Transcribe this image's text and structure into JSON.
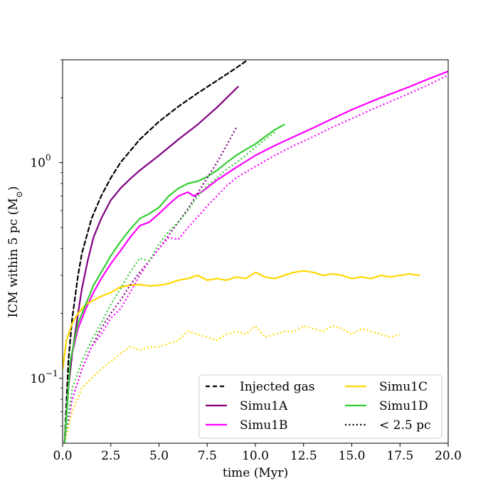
{
  "chart_data": {
    "type": "line",
    "title": "",
    "xlabel": "time (Myr)",
    "ylabel_main": "ICM within 5 pc (M",
    "ylabel_sub": "⊙",
    "ylabel_close": ")",
    "xlim": [
      0,
      20
    ],
    "ylim": [
      0.05,
      3.0
    ],
    "yscale": "log",
    "x_ticks": [
      0,
      2.5,
      5,
      7.5,
      10,
      12.5,
      15,
      17.5,
      20
    ],
    "x_tick_labels": [
      "0.0",
      "2.5",
      "5.0",
      "7.5",
      "10.0",
      "12.5",
      "15.0",
      "17.5",
      "20.0"
    ],
    "y_major_ticks": [
      0.1,
      1.0
    ],
    "y_tick_labels": [
      {
        "base": "10",
        "exp": "−1"
      },
      {
        "base": "10",
        "exp": "0"
      }
    ],
    "y_minor_ticks": [
      0.06,
      0.07,
      0.08,
      0.09,
      0.2,
      0.3,
      0.4,
      0.5,
      0.6,
      0.7,
      0.8,
      0.9,
      2.0,
      3.0
    ],
    "legend": {
      "placement": "lower-right",
      "entries": [
        {
          "label": "Injected gas",
          "color": "#000000",
          "dash": "dashed"
        },
        {
          "label": "Simu1C",
          "color": "#ffd700",
          "dash": "solid"
        },
        {
          "label": "Simu1A",
          "color": "#800080",
          "dash": "solid"
        },
        {
          "label": "Simu1D",
          "color": "#32cd32",
          "dash": "solid"
        },
        {
          "label": "Simu1B",
          "color": "#ff00ff",
          "dash": "solid"
        },
        {
          "label": "< 2.5 pc",
          "color": "#000000",
          "dash": "dotted"
        }
      ]
    },
    "series": [
      {
        "name": "Injected gas",
        "color": "#000000",
        "dash": "dashed",
        "x": [
          0.1,
          0.3,
          0.5,
          0.8,
          1.0,
          1.5,
          2.0,
          2.5,
          3.0,
          4.0,
          5.0,
          6.0,
          7.0,
          8.0,
          9.0,
          9.5
        ],
        "y": [
          0.05,
          0.12,
          0.19,
          0.3,
          0.38,
          0.55,
          0.7,
          0.85,
          1.0,
          1.28,
          1.55,
          1.82,
          2.1,
          2.4,
          2.75,
          2.95
        ]
      },
      {
        "name": "Simu1A",
        "color": "#800080",
        "dash": "solid",
        "x": [
          0.1,
          0.3,
          0.5,
          0.8,
          1.0,
          1.3,
          1.6,
          2.0,
          2.5,
          3.0,
          3.5,
          4.0,
          5.0,
          6.0,
          7.0,
          8.0,
          9.1
        ],
        "y": [
          0.05,
          0.09,
          0.13,
          0.2,
          0.26,
          0.35,
          0.45,
          0.55,
          0.67,
          0.76,
          0.84,
          0.92,
          1.08,
          1.28,
          1.5,
          1.8,
          2.25
        ]
      },
      {
        "name": "Simu1B",
        "color": "#ff00ff",
        "dash": "solid",
        "x": [
          0.1,
          0.4,
          0.8,
          1.2,
          1.6,
          2.0,
          2.5,
          3.0,
          3.5,
          4.0,
          4.5,
          5.0,
          5.5,
          6.0,
          6.5,
          6.8,
          7.2,
          8.0,
          9.0,
          10.0,
          11.0,
          12.0,
          13.0,
          14.0,
          15.0,
          16.0,
          17.0,
          18.0,
          19.0,
          20.0
        ],
        "y": [
          0.05,
          0.12,
          0.17,
          0.21,
          0.25,
          0.29,
          0.34,
          0.39,
          0.45,
          0.51,
          0.53,
          0.58,
          0.64,
          0.7,
          0.73,
          0.7,
          0.73,
          0.83,
          0.95,
          1.08,
          1.2,
          1.32,
          1.45,
          1.6,
          1.76,
          1.92,
          2.08,
          2.25,
          2.45,
          2.65
        ]
      },
      {
        "name": "Simu1C",
        "color": "#ffd700",
        "dash": "solid",
        "x": [
          0.0,
          0.2,
          0.5,
          0.8,
          1.2,
          1.6,
          2.0,
          2.5,
          3.0,
          3.5,
          4.0,
          4.5,
          5.0,
          5.5,
          6.0,
          6.5,
          7.0,
          7.5,
          8.0,
          8.5,
          9.0,
          9.5,
          10.0,
          10.5,
          11.0,
          11.5,
          12.0,
          12.5,
          13.0,
          13.5,
          14.0,
          14.5,
          15.0,
          15.5,
          16.0,
          16.5,
          17.0,
          17.5,
          18.0,
          18.5
        ],
        "y": [
          0.11,
          0.15,
          0.18,
          0.2,
          0.22,
          0.23,
          0.24,
          0.25,
          0.265,
          0.27,
          0.272,
          0.268,
          0.27,
          0.275,
          0.285,
          0.29,
          0.3,
          0.285,
          0.29,
          0.285,
          0.295,
          0.29,
          0.31,
          0.295,
          0.29,
          0.3,
          0.31,
          0.315,
          0.31,
          0.3,
          0.305,
          0.3,
          0.29,
          0.295,
          0.29,
          0.3,
          0.295,
          0.3,
          0.305,
          0.3
        ]
      },
      {
        "name": "Simu1D",
        "color": "#32cd32",
        "dash": "solid",
        "x": [
          0.1,
          0.4,
          0.8,
          1.2,
          1.6,
          2.0,
          2.5,
          3.0,
          3.5,
          4.0,
          4.5,
          5.0,
          5.5,
          6.0,
          6.5,
          7.0,
          7.5,
          8.0,
          8.5,
          9.0,
          9.5,
          10.0,
          10.5,
          11.0,
          11.5
        ],
        "y": [
          0.05,
          0.12,
          0.18,
          0.22,
          0.27,
          0.31,
          0.37,
          0.43,
          0.49,
          0.55,
          0.58,
          0.62,
          0.7,
          0.76,
          0.8,
          0.82,
          0.86,
          0.92,
          1.0,
          1.08,
          1.15,
          1.22,
          1.32,
          1.42,
          1.5
        ]
      },
      {
        "name": "Simu1A < 2.5 pc",
        "color": "#800080",
        "dash": "dotted",
        "x": [
          0.1,
          0.5,
          1.0,
          1.5,
          2.0,
          2.5,
          3.0,
          3.5,
          4.0,
          4.5,
          5.0,
          5.5,
          6.0,
          6.5,
          7.0,
          7.5,
          8.0,
          8.5,
          9.0
        ],
        "y": [
          0.05,
          0.08,
          0.11,
          0.14,
          0.17,
          0.2,
          0.23,
          0.27,
          0.31,
          0.35,
          0.4,
          0.46,
          0.53,
          0.61,
          0.72,
          0.85,
          1.0,
          1.2,
          1.45
        ]
      },
      {
        "name": "Simu1B < 2.5 pc",
        "color": "#ff00ff",
        "dash": "dotted",
        "x": [
          0.1,
          0.5,
          1.0,
          1.5,
          2.0,
          2.5,
          3.0,
          3.5,
          4.0,
          4.5,
          5.0,
          5.5,
          6.0,
          6.5,
          7.0,
          7.5,
          8.0,
          8.5,
          9.0,
          10.0,
          11.0,
          12.0,
          13.0,
          14.0,
          15.0,
          16.0,
          17.0,
          18.0,
          19.0,
          20.0
        ],
        "y": [
          0.05,
          0.08,
          0.11,
          0.14,
          0.16,
          0.19,
          0.21,
          0.25,
          0.3,
          0.35,
          0.4,
          0.45,
          0.44,
          0.5,
          0.56,
          0.63,
          0.7,
          0.78,
          0.85,
          0.96,
          1.08,
          1.2,
          1.32,
          1.46,
          1.6,
          1.76,
          1.92,
          2.1,
          2.3,
          2.55
        ]
      },
      {
        "name": "Simu1C < 2.5 pc",
        "color": "#ffd700",
        "dash": "dotted",
        "x": [
          0.1,
          0.5,
          1.0,
          1.5,
          2.0,
          2.5,
          3.0,
          3.5,
          4.0,
          4.5,
          5.0,
          5.5,
          6.0,
          6.5,
          7.0,
          7.5,
          8.0,
          8.5,
          9.0,
          9.5,
          10.0,
          10.5,
          11.0,
          11.5,
          12.0,
          12.5,
          13.0,
          13.5,
          14.0,
          14.5,
          15.0,
          15.5,
          16.0,
          16.5,
          17.0,
          17.5
        ],
        "y": [
          0.05,
          0.07,
          0.09,
          0.1,
          0.11,
          0.12,
          0.13,
          0.14,
          0.135,
          0.14,
          0.14,
          0.145,
          0.15,
          0.165,
          0.16,
          0.155,
          0.15,
          0.16,
          0.165,
          0.16,
          0.175,
          0.155,
          0.16,
          0.165,
          0.165,
          0.175,
          0.17,
          0.165,
          0.175,
          0.17,
          0.16,
          0.17,
          0.165,
          0.16,
          0.155,
          0.16
        ]
      },
      {
        "name": "Simu1D < 2.5 pc",
        "color": "#32cd32",
        "dash": "dotted",
        "x": [
          0.1,
          0.5,
          1.0,
          1.5,
          2.0,
          2.5,
          3.0,
          3.5,
          4.0,
          4.5,
          5.0,
          5.5,
          6.0,
          6.5,
          7.0,
          7.5,
          8.0,
          8.5,
          9.0,
          9.5,
          10.0,
          10.5,
          11.0
        ],
        "y": [
          0.05,
          0.09,
          0.12,
          0.15,
          0.18,
          0.22,
          0.26,
          0.31,
          0.36,
          0.35,
          0.42,
          0.48,
          0.53,
          0.6,
          0.7,
          0.78,
          0.85,
          0.93,
          1.0,
          1.08,
          1.18,
          1.28,
          1.38
        ]
      }
    ]
  }
}
